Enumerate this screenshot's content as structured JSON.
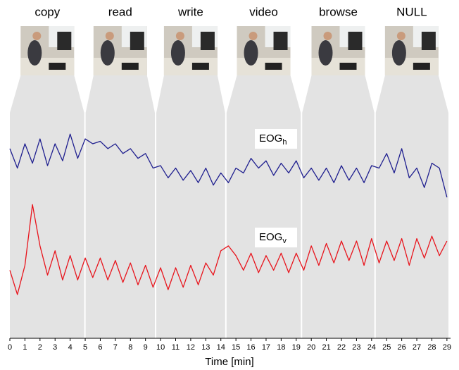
{
  "chart_data": {
    "type": "line",
    "x_label": "Time [min]",
    "xlim": [
      0,
      29.1
    ],
    "xticks": [
      0,
      1,
      2,
      3,
      4,
      5,
      6,
      7,
      8,
      9,
      10,
      11,
      12,
      13,
      14,
      15,
      16,
      17,
      18,
      19,
      20,
      21,
      22,
      23,
      24,
      25,
      26,
      27,
      28,
      29
    ],
    "ylim": [
      0,
      100
    ],
    "segments": [
      {
        "label": "copy",
        "start": 0,
        "end": 4.98
      },
      {
        "label": "read",
        "start": 4.98,
        "end": 9.67
      },
      {
        "label": "write",
        "start": 9.67,
        "end": 14.33
      },
      {
        "label": "video",
        "start": 14.33,
        "end": 19.35
      },
      {
        "label": "browse",
        "start": 19.35,
        "end": 24.23
      },
      {
        "label": "NULL",
        "start": 24.23,
        "end": 29.1
      }
    ],
    "x": [
      0,
      0.5,
      1,
      1.5,
      2,
      2.5,
      3,
      3.5,
      4,
      4.5,
      5,
      5.5,
      6,
      6.5,
      7,
      7.5,
      8,
      8.5,
      9,
      9.5,
      10,
      10.5,
      11,
      11.5,
      12,
      12.5,
      13,
      13.5,
      14,
      14.5,
      15,
      15.5,
      16,
      16.5,
      17,
      17.5,
      18,
      18.5,
      19,
      19.5,
      20,
      20.5,
      21,
      21.5,
      22,
      22.5,
      23,
      23.5,
      24,
      24.5,
      25,
      25.5,
      26,
      26.5,
      27,
      27.5,
      28,
      28.5,
      29
    ],
    "series": [
      {
        "name": "EOG",
        "subscript": "h",
        "color": "#1f1f8f",
        "values": [
          78,
          70,
          80,
          72,
          82,
          71,
          80,
          73,
          84,
          74,
          82,
          80,
          81,
          78,
          80,
          76,
          78,
          74,
          76,
          70,
          71,
          66,
          70,
          65,
          69,
          64,
          70,
          63,
          68,
          64,
          70,
          68,
          74,
          70,
          73,
          67,
          72,
          68,
          73,
          66,
          70,
          65,
          70,
          64,
          71,
          65,
          70,
          64,
          71,
          70,
          76,
          68,
          78,
          66,
          70,
          62,
          72,
          70,
          58
        ]
      },
      {
        "name": "EOG",
        "subscript": "v",
        "color": "#e8141c",
        "values": [
          28,
          18,
          30,
          55,
          38,
          26,
          36,
          24,
          34,
          24,
          33,
          25,
          33,
          24,
          32,
          23,
          31,
          22,
          30,
          21,
          29,
          20,
          29,
          21,
          30,
          22,
          31,
          26,
          36,
          38,
          34,
          28,
          35,
          27,
          34,
          28,
          35,
          27,
          35,
          28,
          38,
          30,
          39,
          31,
          40,
          32,
          40,
          30,
          41,
          31,
          40,
          32,
          41,
          30,
          41,
          33,
          42,
          34,
          40
        ]
      }
    ]
  }
}
